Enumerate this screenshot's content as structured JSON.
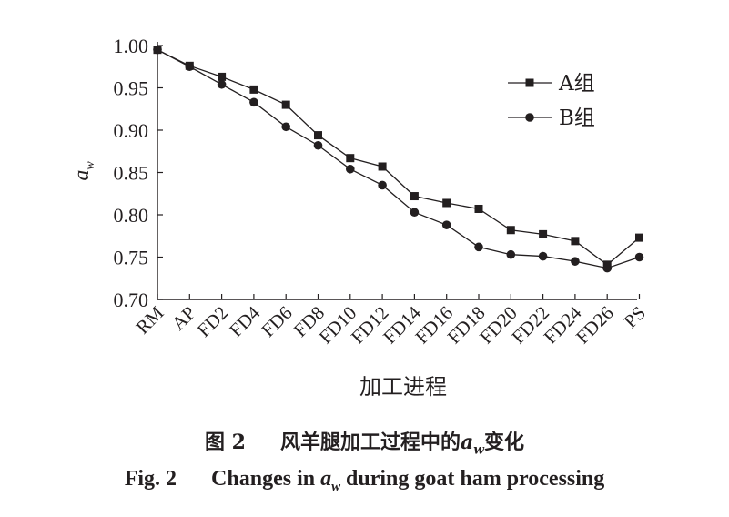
{
  "chart_data": {
    "type": "line",
    "categories": [
      "RM",
      "AP",
      "FD2",
      "FD4",
      "FD6",
      "FD8",
      "FD10",
      "FD12",
      "FD14",
      "FD16",
      "FD18",
      "FD20",
      "FD22",
      "FD24",
      "FD26",
      "PS"
    ],
    "series": [
      {
        "name": "A组",
        "marker": "square",
        "values": [
          0.995,
          0.976,
          0.963,
          0.948,
          0.93,
          0.894,
          0.867,
          0.857,
          0.822,
          0.814,
          0.807,
          0.782,
          0.777,
          0.769,
          0.741,
          0.773
        ]
      },
      {
        "name": "B组",
        "marker": "circle",
        "values": [
          0.995,
          0.975,
          0.954,
          0.933,
          0.904,
          0.882,
          0.854,
          0.835,
          0.803,
          0.788,
          0.762,
          0.753,
          0.751,
          0.745,
          0.737,
          0.75
        ]
      }
    ],
    "yticks": [
      "0.70",
      "0.75",
      "0.80",
      "0.85",
      "0.90",
      "0.95",
      "1.00"
    ],
    "ylim": [
      0.7,
      1.0
    ],
    "xlabel": "加工进程",
    "ylabel_main": "a",
    "ylabel_sub": "w",
    "legend_position": "top-right",
    "grid": false,
    "colors": {
      "line": "#231f20",
      "background": "#ffffff"
    }
  },
  "caption": {
    "cn_label": "图 2",
    "cn_text_pre": "风羊腿加工过程中的",
    "cn_aw_main": "a",
    "cn_aw_sub": "w",
    "cn_text_post": "变化",
    "en_label": "Fig. 2",
    "en_text_pre": "Changes in ",
    "en_aw_main": "a",
    "en_aw_sub": "w",
    "en_text_post": " during goat ham processing"
  }
}
